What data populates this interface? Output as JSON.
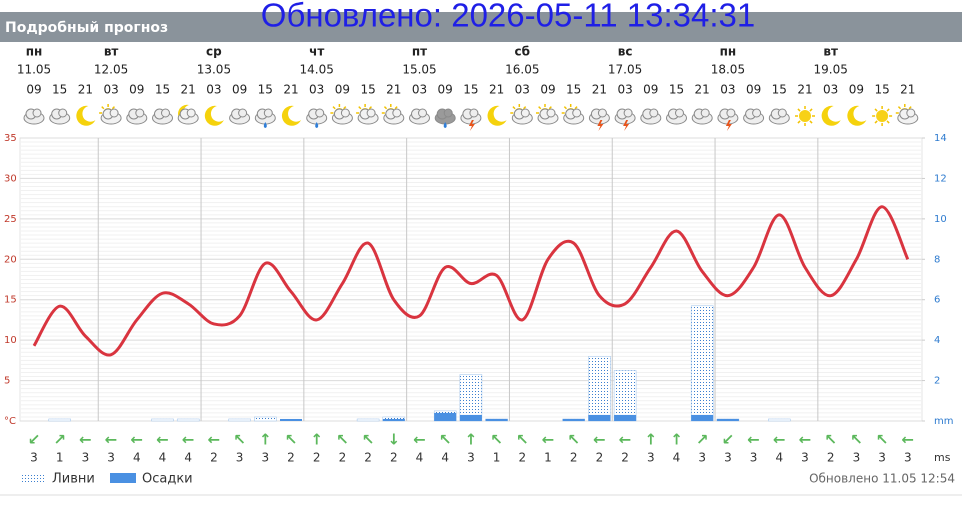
{
  "header": {
    "title": "Подробный прогноз",
    "updated": "Обновлено: 2026-05-11 13:34:31"
  },
  "forecast": {
    "days": [
      {
        "name": "пн",
        "date": "11.05"
      },
      {
        "name": "вт",
        "date": "12.05"
      },
      {
        "name": "ср",
        "date": "13.05"
      },
      {
        "name": "чт",
        "date": "14.05"
      },
      {
        "name": "пт",
        "date": "15.05"
      },
      {
        "name": "сб",
        "date": "16.05"
      },
      {
        "name": "вс",
        "date": "17.05"
      },
      {
        "name": "пн",
        "date": "18.05"
      },
      {
        "name": "вт",
        "date": "19.05"
      }
    ],
    "wind_arrows": [
      "↙",
      "↗",
      "←",
      "←",
      "←",
      "←",
      "←",
      "←",
      "↖",
      "↑",
      "↖",
      "↑",
      "↖",
      "↖",
      "↓",
      "←",
      "↖",
      "↑",
      "↖",
      "↖",
      "←",
      "↖",
      "←",
      "←",
      "↑",
      "↑",
      "↗",
      "↙",
      "←",
      "←",
      "←",
      "↖",
      "↖",
      "↖",
      "←"
    ],
    "wind_speed": [
      3,
      1,
      3,
      3,
      4,
      4,
      4,
      2,
      3,
      3,
      2,
      2,
      2,
      2,
      2,
      4,
      4,
      3,
      1,
      2,
      1,
      2,
      2,
      2,
      3,
      4,
      3,
      3,
      3,
      4,
      3,
      2,
      3,
      3,
      3
    ],
    "wind_unit": "ms"
  },
  "chart_data": {
    "type": "combo",
    "categories": [
      "09",
      "15",
      "21",
      "03",
      "09",
      "15",
      "21",
      "03",
      "09",
      "15",
      "21",
      "03",
      "09",
      "15",
      "21",
      "03",
      "09",
      "15",
      "21",
      "03",
      "09",
      "15",
      "21",
      "03",
      "09",
      "15",
      "21",
      "03",
      "09",
      "15",
      "21",
      "03",
      "09",
      "15",
      "21"
    ],
    "series": [
      {
        "type": "line",
        "color": "#d9343f",
        "values": [
          9.3,
          14.2,
          10.5,
          8.2,
          12.5,
          15.8,
          14.5,
          12,
          13,
          19.5,
          16,
          12.5,
          17,
          22,
          15,
          13,
          19,
          17,
          18,
          12.5,
          20,
          22,
          15.5,
          14.5,
          19,
          23.5,
          18.5,
          15.5,
          19,
          25.5,
          19,
          15.5,
          20,
          26.5,
          20
        ]
      },
      {
        "type": "bar",
        "name": "Ливни",
        "color": "#3b7fd0",
        "axis": "y2",
        "values": [
          0,
          0.1,
          0,
          0,
          0,
          0.1,
          0.1,
          0,
          0.1,
          0.2,
          0,
          0,
          0,
          0.1,
          0.2,
          0,
          0.5,
          2.3,
          0.1,
          0,
          0,
          0.1,
          3.2,
          2.5,
          0,
          0,
          5.7,
          0.1,
          0,
          0.1,
          0,
          0,
          0,
          0,
          0
        ]
      },
      {
        "type": "bar",
        "name": "Осадки",
        "color": "#4a90e2",
        "axis": "y2",
        "values": [
          0,
          0,
          0,
          0,
          0,
          0,
          0,
          0,
          0,
          0,
          0.1,
          0,
          0,
          0,
          0.1,
          0,
          0.4,
          0.3,
          0.1,
          0,
          0,
          0.1,
          0.3,
          0.3,
          0,
          0,
          0.3,
          0.1,
          0,
          0,
          0,
          0,
          0,
          0,
          0
        ]
      }
    ],
    "ylim": [
      0,
      35
    ],
    "yticks": [
      {
        "value": 0,
        "label": "°C"
      },
      5,
      10,
      15,
      20,
      25,
      30,
      35
    ],
    "y2lim": [
      0,
      14
    ],
    "y2ticks": [
      {
        "value": 0,
        "label": "mm"
      },
      2,
      4,
      6,
      8,
      10,
      12,
      14
    ],
    "grid": true
  },
  "footer": {
    "updated": "Обновлено 11.05 12:54"
  }
}
